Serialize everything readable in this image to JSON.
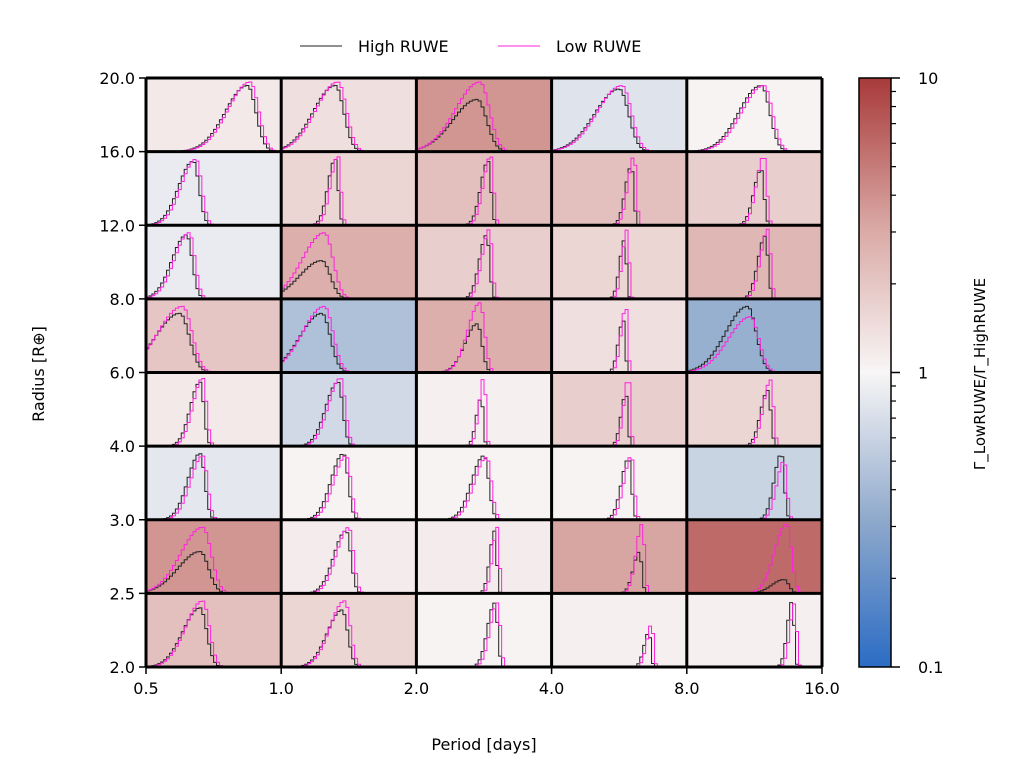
{
  "chart_data": {
    "type": "heatmap",
    "xlabel": "Period [days]",
    "ylabel": "Radius [R⊕]",
    "x_scale": "log2",
    "x_bin_edges": [
      0.5,
      1.0,
      2.0,
      4.0,
      8.0,
      16.0
    ],
    "x_tick_labels": [
      "0.5",
      "1.0",
      "2.0",
      "4.0",
      "8.0",
      "16.0"
    ],
    "y_bin_edges": [
      2.0,
      2.5,
      3.0,
      4.0,
      6.0,
      8.0,
      12.0,
      16.0,
      20.0
    ],
    "y_tick_labels": [
      "2.0",
      "2.5",
      "3.0",
      "4.0",
      "6.0",
      "8.0",
      "12.0",
      "16.0",
      "20.0"
    ],
    "legend": {
      "placement": "top-center",
      "entries": [
        {
          "label": "High RUWE",
          "color": "#222222"
        },
        {
          "label": "Low RUWE",
          "color": "#ff22dd"
        }
      ]
    },
    "colorbar": {
      "label": "Γ_LowRUWE/Γ_HighRUWE",
      "scale": "log",
      "range": [
        0.1,
        10
      ],
      "tick_labels": [
        "0.1",
        "1",
        "10"
      ],
      "colormap": "blue-white-red"
    },
    "ratio_grid_rows_top_to_bottom": [
      [
        1.2,
        1.4,
        3.8,
        0.75,
        1.05
      ],
      [
        0.85,
        1.6,
        2.2,
        2.2,
        1.8
      ],
      [
        0.85,
        2.8,
        1.8,
        1.6,
        2.5
      ],
      [
        2.0,
        0.45,
        2.8,
        1.4,
        0.35
      ],
      [
        1.2,
        0.65,
        1.1,
        1.8,
        1.6
      ],
      [
        0.8,
        1.05,
        1.05,
        1.05,
        0.6
      ],
      [
        3.8,
        1.15,
        1.15,
        3.2,
        6.0
      ],
      [
        2.2,
        1.6,
        1.05,
        1.1,
        1.1
      ]
    ],
    "histograms_rows_top_to_bottom": [
      [
        {
          "peak": 0.75,
          "spread": 0.09,
          "high_amp": 0.95,
          "low_amp": 1.0
        },
        {
          "peak": 0.4,
          "spread": 0.09,
          "high_amp": 0.95,
          "low_amp": 1.0
        },
        {
          "peak": 0.45,
          "spread": 0.1,
          "high_amp": 0.75,
          "low_amp": 1.0
        },
        {
          "peak": 0.5,
          "spread": 0.1,
          "high_amp": 0.9,
          "low_amp": 0.95
        },
        {
          "peak": 0.55,
          "spread": 0.09,
          "high_amp": 0.95,
          "low_amp": 0.95
        }
      ],
      [
        {
          "peak": 0.35,
          "spread": 0.06,
          "high_amp": 0.92,
          "low_amp": 0.95
        },
        {
          "peak": 0.4,
          "spread": 0.03,
          "high_amp": 0.95,
          "low_amp": 1.0
        },
        {
          "peak": 0.53,
          "spread": 0.03,
          "high_amp": 0.92,
          "low_amp": 1.0
        },
        {
          "peak": 0.59,
          "spread": 0.025,
          "high_amp": 0.85,
          "low_amp": 1.0
        },
        {
          "peak": 0.55,
          "spread": 0.03,
          "high_amp": 0.8,
          "low_amp": 1.0
        }
      ],
      [
        {
          "peak": 0.3,
          "spread": 0.06,
          "high_amp": 0.92,
          "low_amp": 0.95
        },
        {
          "peak": 0.3,
          "spread": 0.09,
          "high_amp": 0.55,
          "low_amp": 0.95
        },
        {
          "peak": 0.52,
          "spread": 0.03,
          "high_amp": 0.92,
          "low_amp": 1.0
        },
        {
          "peak": 0.54,
          "spread": 0.02,
          "high_amp": 0.85,
          "low_amp": 1.0
        },
        {
          "peak": 0.58,
          "spread": 0.03,
          "high_amp": 0.9,
          "low_amp": 1.0
        }
      ],
      [
        {
          "peak": 0.25,
          "spread": 0.1,
          "high_amp": 0.85,
          "low_amp": 0.95
        },
        {
          "peak": 0.3,
          "spread": 0.09,
          "high_amp": 0.85,
          "low_amp": 0.95
        },
        {
          "peak": 0.45,
          "spread": 0.05,
          "high_amp": 0.7,
          "low_amp": 1.0
        },
        {
          "peak": 0.53,
          "spread": 0.02,
          "high_amp": 0.75,
          "low_amp": 0.95
        },
        {
          "peak": 0.45,
          "spread": 0.09,
          "high_amp": 0.95,
          "low_amp": 0.8
        }
      ],
      [
        {
          "peak": 0.4,
          "spread": 0.04,
          "high_amp": 0.92,
          "low_amp": 0.98
        },
        {
          "peak": 0.42,
          "spread": 0.05,
          "high_amp": 0.92,
          "low_amp": 0.98
        },
        {
          "peak": 0.48,
          "spread": 0.02,
          "high_amp": 0.7,
          "low_amp": 1.0
        },
        {
          "peak": 0.55,
          "spread": 0.02,
          "high_amp": 0.75,
          "low_amp": 1.0
        },
        {
          "peak": 0.6,
          "spread": 0.03,
          "high_amp": 0.8,
          "low_amp": 0.95
        }
      ],
      [
        {
          "peak": 0.4,
          "spread": 0.05,
          "high_amp": 0.95,
          "low_amp": 0.92
        },
        {
          "peak": 0.46,
          "spread": 0.05,
          "high_amp": 0.95,
          "low_amp": 0.92
        },
        {
          "peak": 0.5,
          "spread": 0.05,
          "high_amp": 0.92,
          "low_amp": 0.9
        },
        {
          "peak": 0.57,
          "spread": 0.03,
          "high_amp": 0.88,
          "low_amp": 0.92
        },
        {
          "peak": 0.7,
          "spread": 0.03,
          "high_amp": 0.95,
          "low_amp": 0.85
        }
      ],
      [
        {
          "peak": 0.4,
          "spread": 0.09,
          "high_amp": 0.6,
          "low_amp": 0.95
        },
        {
          "peak": 0.48,
          "spread": 0.05,
          "high_amp": 0.9,
          "low_amp": 0.95
        },
        {
          "peak": 0.58,
          "spread": 0.02,
          "high_amp": 0.9,
          "low_amp": 0.95
        },
        {
          "peak": 0.65,
          "spread": 0.025,
          "high_amp": 0.6,
          "low_amp": 1.0
        },
        {
          "peak": 0.72,
          "spread": 0.05,
          "high_amp": 0.2,
          "low_amp": 1.0
        }
      ],
      [
        {
          "peak": 0.4,
          "spread": 0.07,
          "high_amp": 0.85,
          "low_amp": 0.95
        },
        {
          "peak": 0.45,
          "spread": 0.06,
          "high_amp": 0.82,
          "low_amp": 0.95
        },
        {
          "peak": 0.58,
          "spread": 0.03,
          "high_amp": 0.92,
          "low_amp": 0.92
        },
        {
          "peak": 0.72,
          "spread": 0.02,
          "high_amp": 0.5,
          "low_amp": 0.62
        },
        {
          "peak": 0.78,
          "spread": 0.02,
          "high_amp": 0.95,
          "low_amp": 0.92
        }
      ]
    ]
  }
}
